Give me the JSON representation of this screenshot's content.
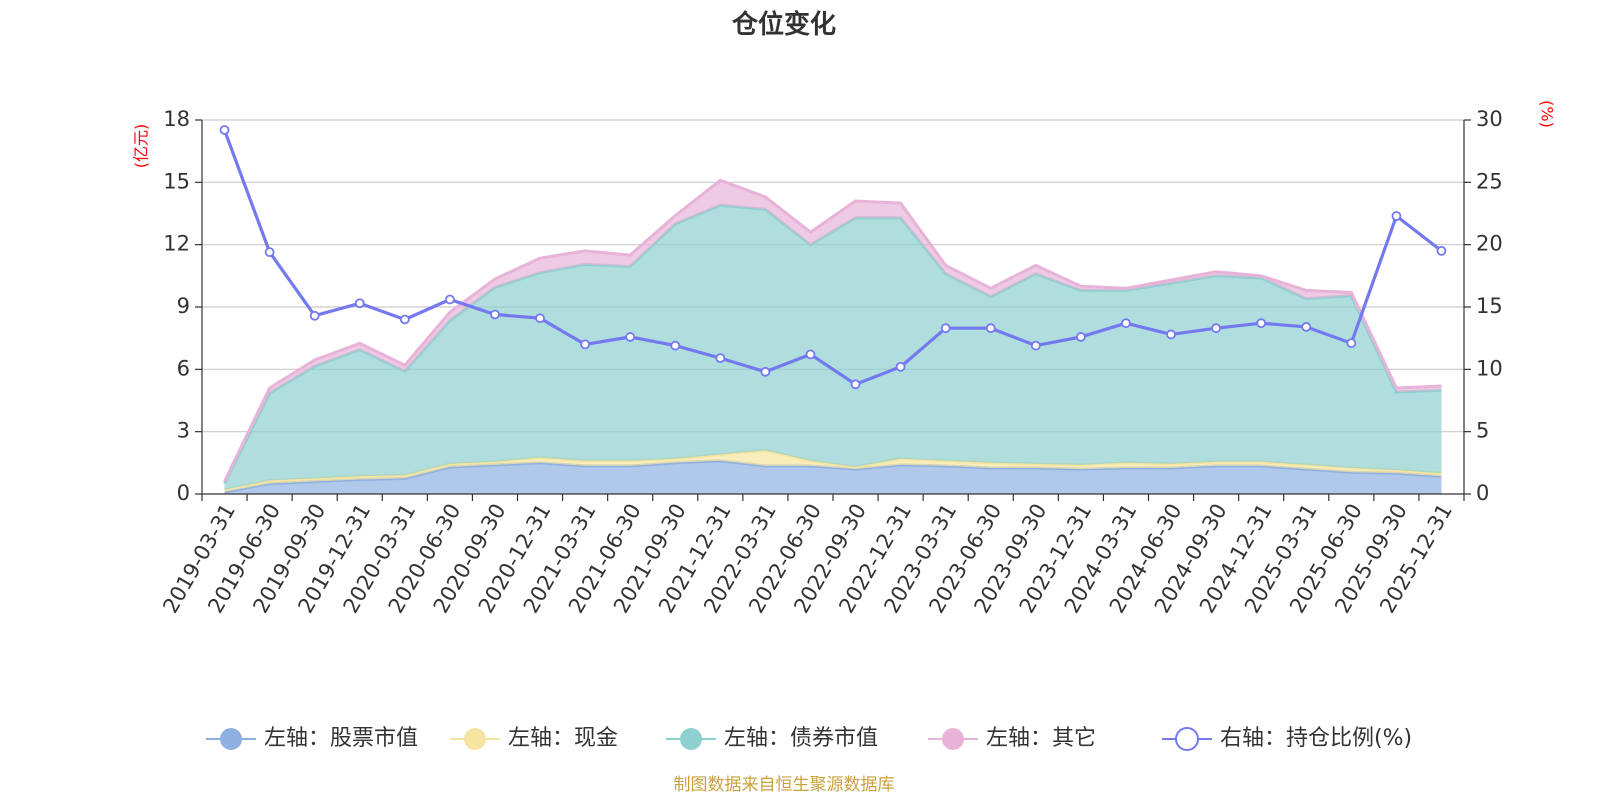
{
  "chart_data": {
    "type": "area",
    "title": "仓位变化",
    "categories": [
      "2019-03-31",
      "2019-06-30",
      "2019-09-30",
      "2019-12-31",
      "2020-03-31",
      "2020-06-30",
      "2020-09-30",
      "2020-12-31",
      "2021-03-31",
      "2021-06-30",
      "2021-09-30",
      "2021-12-31",
      "2022-03-31",
      "2022-06-30",
      "2022-09-30",
      "2022-12-31",
      "2023-03-31",
      "2023-06-30",
      "2023-09-30",
      "2023-12-31",
      "2024-03-31",
      "2024-06-30",
      "2024-09-30",
      "2024-12-31",
      "2025-03-31",
      "2025-06-30",
      "2025-09-30",
      "2025-12-31"
    ],
    "left_axis": {
      "unit": "(亿元)",
      "ylim": [
        0,
        18
      ],
      "ticks": [
        0,
        3,
        6,
        9,
        12,
        15,
        18
      ]
    },
    "right_axis": {
      "unit": "(%)",
      "ylim": [
        0,
        30
      ],
      "ticks": [
        0,
        5,
        10,
        15,
        20,
        25,
        30
      ]
    },
    "series": [
      {
        "name": "左轴：股票市值",
        "axis": "left",
        "stack": true,
        "color": "#8fb0e0",
        "values": [
          0.1,
          0.5,
          0.6,
          0.7,
          0.75,
          1.3,
          1.4,
          1.5,
          1.35,
          1.35,
          1.5,
          1.6,
          1.35,
          1.35,
          1.2,
          1.4,
          1.35,
          1.25,
          1.25,
          1.2,
          1.25,
          1.25,
          1.35,
          1.35,
          1.2,
          1.05,
          1.0,
          0.85
        ]
      },
      {
        "name": "左轴：现金",
        "axis": "left",
        "stack": true,
        "color": "#f6e5a0",
        "values": [
          0.1,
          0.15,
          0.15,
          0.15,
          0.15,
          0.15,
          0.15,
          0.25,
          0.25,
          0.25,
          0.2,
          0.3,
          0.75,
          0.25,
          0.1,
          0.3,
          0.25,
          0.25,
          0.2,
          0.2,
          0.25,
          0.2,
          0.2,
          0.2,
          0.2,
          0.2,
          0.15,
          0.15
        ]
      },
      {
        "name": "左轴：债券市值",
        "axis": "left",
        "stack": true,
        "color": "#8ed0d0",
        "values": [
          0.3,
          4.2,
          5.4,
          6.1,
          5.0,
          6.9,
          8.4,
          8.9,
          9.45,
          9.35,
          11.3,
          12.0,
          11.6,
          10.4,
          12.0,
          11.6,
          9.0,
          8.0,
          9.15,
          8.4,
          8.3,
          8.7,
          8.95,
          8.85,
          8.0,
          8.3,
          3.75,
          4.0
        ]
      },
      {
        "name": "左轴：其它",
        "axis": "left",
        "stack": true,
        "color": "#e8b3d8",
        "values": [
          0.1,
          0.25,
          0.3,
          0.3,
          0.3,
          0.4,
          0.4,
          0.7,
          0.65,
          0.55,
          0.4,
          1.2,
          0.6,
          0.6,
          0.8,
          0.7,
          0.4,
          0.4,
          0.4,
          0.2,
          0.1,
          0.15,
          0.2,
          0.1,
          0.4,
          0.15,
          0.2,
          0.2
        ]
      },
      {
        "name": "右轴：持仓比例(%)",
        "axis": "right",
        "stack": false,
        "color": "#7479f0",
        "values": [
          29.2,
          19.4,
          14.3,
          15.3,
          14.0,
          15.6,
          14.4,
          14.1,
          12.0,
          12.6,
          11.9,
          10.9,
          9.8,
          11.2,
          8.8,
          10.2,
          13.3,
          13.3,
          11.9,
          12.6,
          13.7,
          12.8,
          13.3,
          13.7,
          13.4,
          12.1,
          22.3,
          19.5
        ]
      }
    ],
    "legend_position": "bottom-center",
    "grid": true
  },
  "footer_text": "制图数据来自恒生聚源数据库",
  "colors": {
    "footer": "#c8a23c",
    "axis_unit": "#ff0000",
    "grid": "#cccccc"
  }
}
